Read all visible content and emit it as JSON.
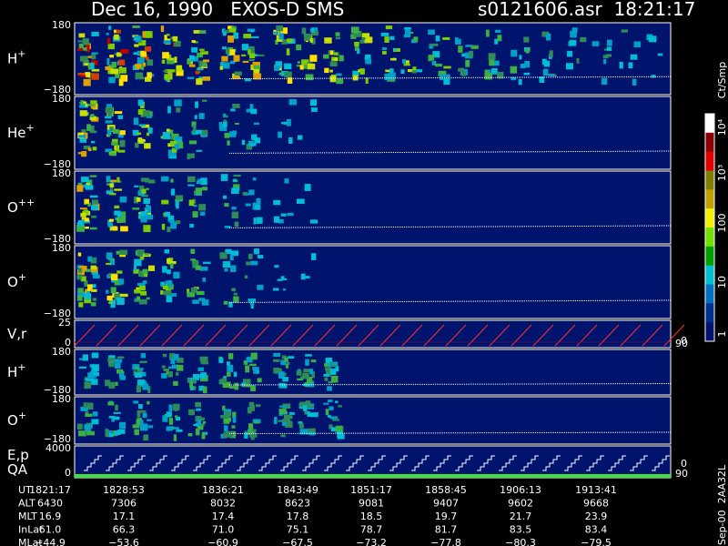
{
  "header": {
    "title": "Dec 16, 1990   EXOS-D SMS",
    "file": "s0121606.asr  18:21:17"
  },
  "panels": [
    {
      "name": "H",
      "charge": "+",
      "top": "180",
      "bottom": "−180"
    },
    {
      "name": "He",
      "charge": "+",
      "top": "180",
      "bottom": "−180"
    },
    {
      "name": "O",
      "charge": "++",
      "top": "180",
      "bottom": "−180"
    },
    {
      "name": "O",
      "charge": "+",
      "top": "180",
      "bottom": "−180"
    },
    {
      "name": "V,r",
      "charge": "",
      "top": "25",
      "bottom": "0",
      "right_top": "90",
      "right_bottom": "0"
    },
    {
      "name": "H",
      "charge": "+",
      "top": "180",
      "bottom": "−180"
    },
    {
      "name": "O",
      "charge": "+",
      "top": "180",
      "bottom": "−180"
    },
    {
      "name": "E,p",
      "charge": "",
      "name2": "QA",
      "top": "4000",
      "bottom": "0",
      "right_top": "90",
      "right_bottom": "0"
    }
  ],
  "colorbar": {
    "unit": "Ct/Smp",
    "labels": [
      "10⁴",
      "10³",
      "100",
      "10",
      "1"
    ]
  },
  "footnote": "Sep-00  2AA32L",
  "table": {
    "rows": [
      {
        "label": "UT",
        "values": [
          "1821:17",
          "1828:53",
          "1836:21",
          "1843:49",
          "1851:17",
          "1858:45",
          "1906:13",
          "1913:41"
        ]
      },
      {
        "label": "ALT",
        "values": [
          "6430",
          "7306",
          "8032",
          "8623",
          "9081",
          "9407",
          "9602",
          "9668"
        ]
      },
      {
        "label": "MLT",
        "values": [
          "16.9",
          "17.1",
          "17.4",
          "17.8",
          "18.5",
          "19.7",
          "21.7",
          "23.9"
        ]
      },
      {
        "label": "InLat",
        "values": [
          "61.0",
          "66.3",
          "71.0",
          "75.1",
          "78.7",
          "81.7",
          "83.5",
          "83.4"
        ]
      },
      {
        "label": "MLat",
        "values": [
          "−44.9",
          "−53.6",
          "−60.9",
          "−67.5",
          "−73.2",
          "−77.8",
          "−80.3",
          "−79.5"
        ]
      }
    ]
  }
}
